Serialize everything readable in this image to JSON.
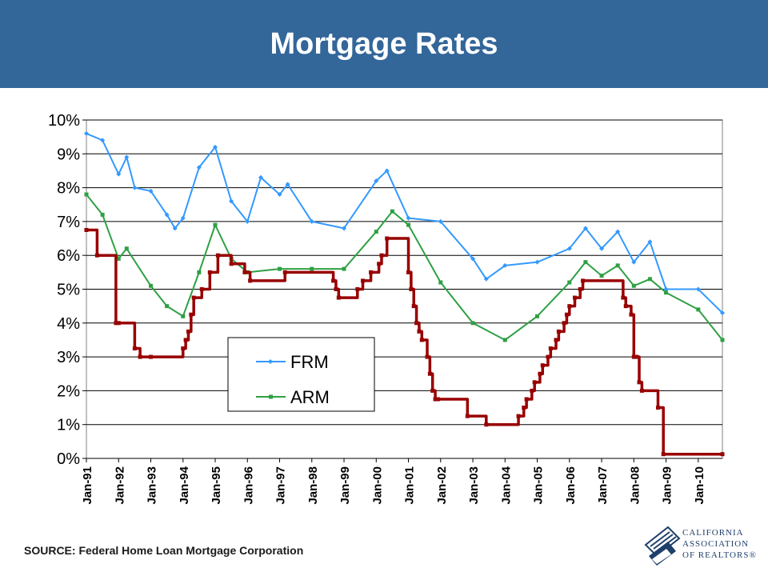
{
  "header": {
    "title": "Mortgage Rates"
  },
  "source": "SOURCE: Federal Home Loan Mortgage Corporation",
  "logo": {
    "lines": [
      "CALIFORNIA",
      "ASSOCIATION",
      "OF REALTORS®"
    ]
  },
  "colors": {
    "header_bg": "#336699",
    "frm": "#3399ff",
    "arm": "#2ea043",
    "fed": "#990000"
  },
  "chart_data": {
    "type": "line",
    "title": "Mortgage Rates",
    "xlabel": "",
    "ylabel": "",
    "ylim": [
      0,
      10
    ],
    "yticks": [
      "0%",
      "1%",
      "2%",
      "3%",
      "4%",
      "5%",
      "6%",
      "7%",
      "8%",
      "9%",
      "10%"
    ],
    "xticks": [
      "Jan-91",
      "Jan-92",
      "Jan-93",
      "Jan-94",
      "Jan-95",
      "Jan-96",
      "Jan-97",
      "Jan-98",
      "Jan-99",
      "Jan-00",
      "Jan-01",
      "Jan-02",
      "Jan-03",
      "Jan-04",
      "Jan-05",
      "Jan-06",
      "Jan-07",
      "Jan-08",
      "Jan-09",
      "Jan-10"
    ],
    "x_start": "Jan-91",
    "x_end": "Oct-10",
    "grid": true,
    "legend": "center",
    "series": [
      {
        "name": "FRM",
        "color": "#3399ff",
        "marker": "diamond",
        "x": [
          "Jan-91",
          "Jul-91",
          "Jan-92",
          "Apr-92",
          "Jul-92",
          "Jan-93",
          "Jul-93",
          "Oct-93",
          "Jan-94",
          "Jul-94",
          "Jan-95",
          "Jul-95",
          "Jan-96",
          "Jun-96",
          "Jan-97",
          "Apr-97",
          "Jan-98",
          "Jan-99",
          "Jan-00",
          "May-00",
          "Jan-01",
          "Jan-02",
          "Jan-03",
          "Jun-03",
          "Jan-04",
          "Jan-05",
          "Jan-06",
          "Jul-06",
          "Jan-07",
          "Jul-07",
          "Jan-08",
          "Jul-08",
          "Jan-09",
          "Jan-10",
          "Oct-10"
        ],
        "values": [
          9.6,
          9.4,
          8.4,
          8.9,
          8.0,
          7.9,
          7.2,
          6.8,
          7.1,
          8.6,
          9.2,
          7.6,
          7.0,
          8.3,
          7.8,
          8.1,
          7.0,
          6.8,
          8.2,
          8.5,
          7.1,
          7.0,
          5.9,
          5.3,
          5.7,
          5.8,
          6.2,
          6.8,
          6.2,
          6.7,
          5.8,
          6.4,
          5.0,
          5.0,
          4.3
        ]
      },
      {
        "name": "ARM",
        "color": "#2ea043",
        "marker": "square",
        "x": [
          "Jan-91",
          "Jul-91",
          "Jan-92",
          "Apr-92",
          "Jan-93",
          "Jul-93",
          "Jan-94",
          "Jul-94",
          "Jan-95",
          "Jul-95",
          "Jan-96",
          "Jan-97",
          "Jan-98",
          "Jan-99",
          "Jan-00",
          "Jul-00",
          "Jan-01",
          "Jan-02",
          "Jan-03",
          "Jan-04",
          "Jan-05",
          "Jan-06",
          "Jul-06",
          "Jan-07",
          "Jul-07",
          "Jan-08",
          "Jul-08",
          "Jan-09",
          "Jan-10",
          "Oct-10"
        ],
        "values": [
          7.8,
          7.2,
          5.9,
          6.2,
          5.1,
          4.5,
          4.2,
          5.5,
          6.9,
          5.9,
          5.5,
          5.6,
          5.6,
          5.6,
          6.7,
          7.3,
          6.9,
          5.2,
          4.0,
          3.5,
          4.2,
          5.2,
          5.8,
          5.4,
          5.7,
          5.1,
          5.3,
          4.9,
          4.4,
          3.5
        ]
      },
      {
        "name": "",
        "color": "#990000",
        "marker": "square",
        "step": true,
        "x": [
          "Jan-91",
          "May-91",
          "Dec-91",
          "Jan-92",
          "Jul-92",
          "Sep-92",
          "Jan-93",
          "Jan-94",
          "Feb-94",
          "Mar-94",
          "Apr-94",
          "May-94",
          "Aug-94",
          "Nov-94",
          "Feb-95",
          "Jul-95",
          "Dec-95",
          "Feb-96",
          "Mar-97",
          "Sep-98",
          "Oct-98",
          "Nov-98",
          "Jun-99",
          "Aug-99",
          "Nov-99",
          "Feb-00",
          "Mar-00",
          "May-00",
          "Jan-01",
          "Feb-01",
          "Mar-01",
          "Apr-01",
          "May-01",
          "Jun-01",
          "Aug-01",
          "Sep-01",
          "Oct-01",
          "Nov-01",
          "Dec-01",
          "Nov-02",
          "Jun-03",
          "Jun-04",
          "Aug-04",
          "Sep-04",
          "Nov-04",
          "Dec-04",
          "Feb-05",
          "Mar-05",
          "May-05",
          "Jun-05",
          "Aug-05",
          "Sep-05",
          "Nov-05",
          "Dec-05",
          "Jan-06",
          "Mar-06",
          "May-06",
          "Jun-06",
          "Sep-07",
          "Oct-07",
          "Dec-07",
          "Jan-08",
          "Feb-08",
          "Mar-08",
          "Apr-08",
          "Oct-08",
          "Dec-08",
          "Oct-10"
        ],
        "values": [
          6.75,
          6.0,
          4.0,
          4.0,
          3.25,
          3.0,
          3.0,
          3.25,
          3.5,
          3.75,
          4.25,
          4.75,
          5.0,
          5.5,
          6.0,
          5.75,
          5.5,
          5.25,
          5.5,
          5.25,
          5.0,
          4.75,
          5.0,
          5.25,
          5.5,
          5.75,
          6.0,
          6.5,
          5.5,
          5.0,
          4.5,
          4.0,
          3.75,
          3.5,
          3.0,
          2.5,
          2.0,
          1.75,
          1.75,
          1.25,
          1.0,
          1.25,
          1.5,
          1.75,
          2.0,
          2.25,
          2.5,
          2.75,
          3.0,
          3.25,
          3.5,
          3.75,
          4.0,
          4.25,
          4.5,
          4.75,
          5.0,
          5.25,
          4.75,
          4.5,
          4.25,
          3.0,
          3.0,
          2.25,
          2.0,
          1.5,
          0.125,
          0.125
        ]
      }
    ]
  }
}
